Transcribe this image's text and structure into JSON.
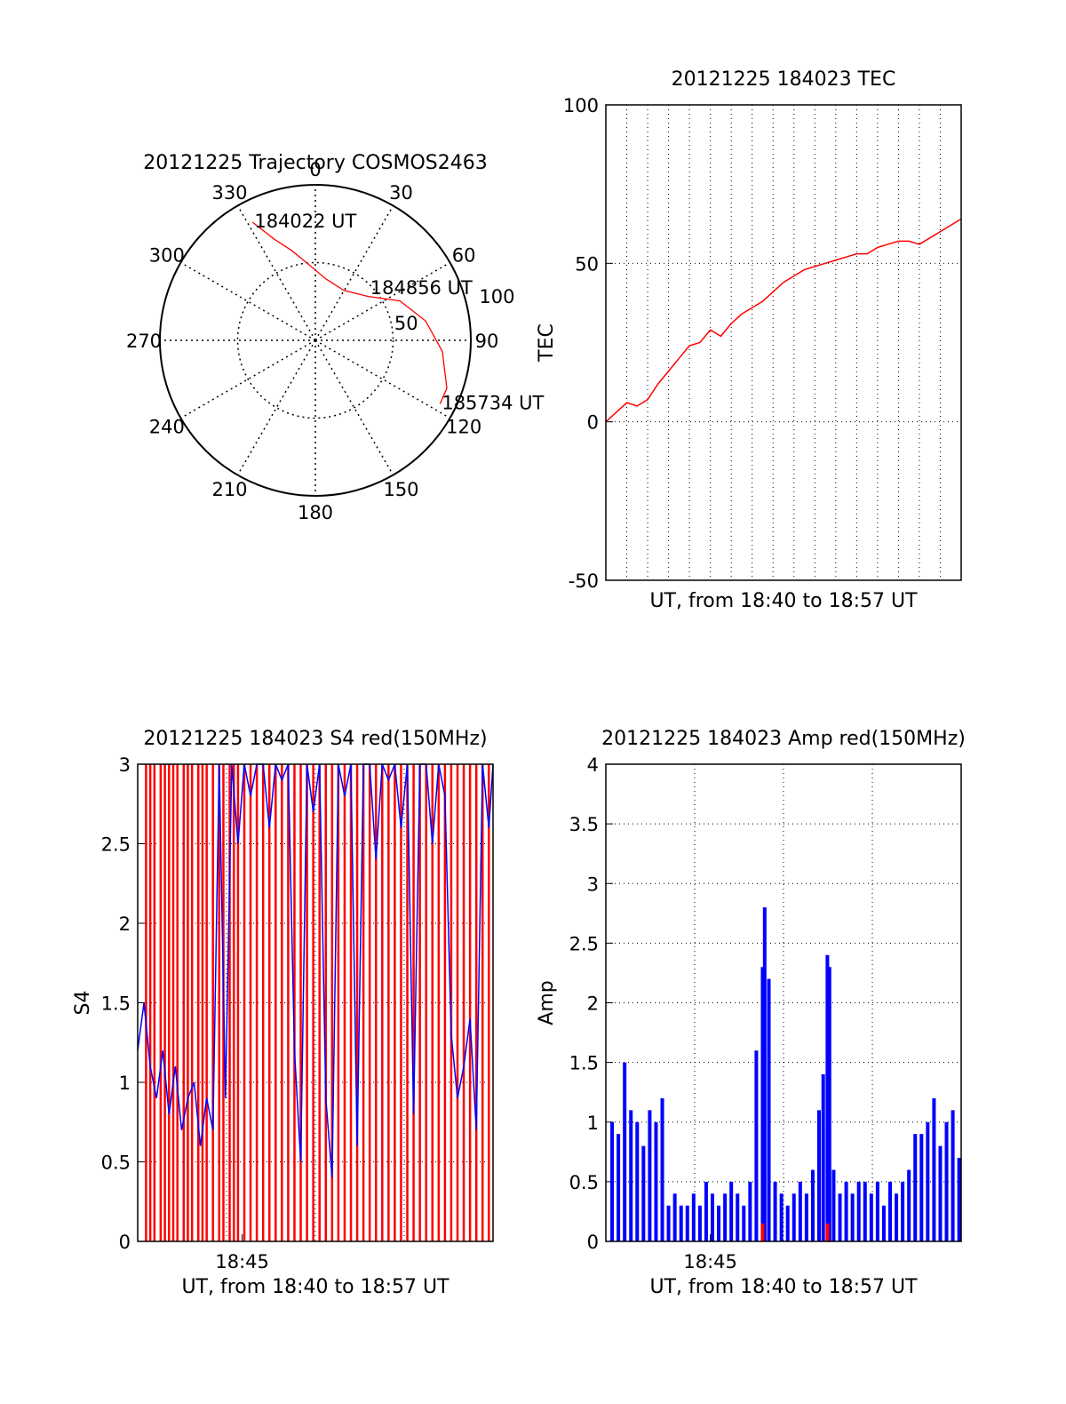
{
  "colors": {
    "trace_red": "#ff0000",
    "trace_blue": "#0000ff",
    "axis": "#000000"
  },
  "chart_data": [
    {
      "type": "polar",
      "title": "20121225 Trajectory COSMOS2463",
      "angle_labels": [
        "0",
        "30",
        "60",
        "90",
        "120",
        "150",
        "180",
        "210",
        "240",
        "270",
        "300",
        "330"
      ],
      "radius_labels": [
        "50",
        "100"
      ],
      "radius_range": [
        0,
        100
      ],
      "grid": true,
      "series": [
        {
          "points": [
            {
              "azimuth": 332,
              "zenith": 86
            },
            {
              "azimuth": 338,
              "zenith": 70
            },
            {
              "azimuth": 345,
              "zenith": 60
            },
            {
              "azimuth": 355,
              "zenith": 49
            },
            {
              "azimuth": 10,
              "zenith": 40
            },
            {
              "azimuth": 30,
              "zenith": 37
            },
            {
              "azimuth": 50,
              "zenith": 44
            },
            {
              "azimuth": 65,
              "zenith": 60
            },
            {
              "azimuth": 80,
              "zenith": 72
            },
            {
              "azimuth": 95,
              "zenith": 82
            },
            {
              "azimuth": 110,
              "zenith": 90
            },
            {
              "azimuth": 117,
              "zenith": 90
            }
          ]
        }
      ],
      "annotations": [
        {
          "text": "184022 UT",
          "azimuth": 332,
          "zenith": 86
        },
        {
          "text": "184856 UT",
          "azimuth": 47,
          "zenith": 42
        },
        {
          "text": "185734 UT",
          "azimuth": 117,
          "zenith": 90
        }
      ]
    },
    {
      "type": "line",
      "title": "20121225 184023 TEC",
      "xlabel": "UT, from 18:40 to 18:57 UT",
      "ylabel": "TEC",
      "xlim": [
        0,
        17
      ],
      "ylim": [
        -50,
        100
      ],
      "y_ticks": [
        "-50",
        "0",
        "50",
        "100"
      ],
      "grid": true,
      "series": [
        {
          "x": [
            0,
            0.5,
            1,
            1.5,
            2,
            2.5,
            3,
            3.5,
            4,
            4.5,
            5,
            5.5,
            6,
            6.5,
            7,
            7.5,
            8,
            8.5,
            9,
            9.5,
            10,
            10.5,
            11,
            11.5,
            12,
            12.5,
            13,
            13.5,
            14,
            14.5,
            15,
            15.5,
            16,
            16.5,
            17
          ],
          "values": [
            0,
            3,
            6,
            5,
            7,
            12,
            16,
            20,
            24,
            25,
            29,
            27,
            31,
            34,
            36,
            38,
            41,
            44,
            46,
            48,
            49,
            50,
            51,
            52,
            53,
            53,
            55,
            56,
            57,
            57,
            56,
            58,
            60,
            62,
            64
          ]
        }
      ]
    },
    {
      "type": "line",
      "title": "20121225 184023 S4 red(150MHz)",
      "xlabel": "UT, from 18:40 to 18:57 UT",
      "ylabel": "S4",
      "xlim": [
        0,
        17
      ],
      "ylim": [
        0,
        3
      ],
      "x_ticks": [
        {
          "x": 5,
          "label": "18:45"
        }
      ],
      "y_ticks": [
        "0",
        "0.5",
        "1",
        "1.5",
        "2",
        "2.5",
        "3"
      ],
      "grid": true,
      "series": [
        {
          "color": "red",
          "mode": "spikes",
          "x": [
            0.4,
            0.6,
            0.8,
            1.1,
            1.3,
            1.5,
            1.7,
            1.9,
            2.2,
            2.4,
            2.6,
            2.9,
            3.1,
            3.3,
            3.6,
            3.9,
            4.1,
            4.4,
            4.6,
            4.8,
            5.1,
            5.4,
            5.7,
            6.0,
            6.3,
            6.6,
            6.9,
            7.2,
            7.5,
            7.8,
            8.1,
            8.4,
            8.7,
            9.0,
            9.3,
            9.6,
            9.9,
            10.2,
            10.5,
            10.8,
            11.1,
            11.4,
            11.7,
            12.0,
            12.3,
            12.6,
            12.9,
            13.2,
            13.5,
            13.8,
            14.1,
            14.4,
            14.7,
            15.0,
            15.3,
            15.6,
            15.9,
            16.2,
            16.5,
            16.8
          ],
          "values": [
            3,
            3,
            3,
            3,
            3,
            3,
            3,
            3,
            3,
            3,
            3,
            3,
            3,
            3,
            3,
            3,
            3,
            3,
            3,
            3,
            3,
            3,
            3,
            3,
            3,
            3,
            3,
            3,
            3,
            3,
            3,
            3,
            3,
            3,
            3,
            3,
            3,
            3,
            3,
            3,
            3,
            3,
            3,
            3,
            3,
            3,
            3,
            3,
            3,
            3,
            3,
            3,
            3,
            3,
            3,
            3,
            3,
            3,
            3,
            3
          ]
        },
        {
          "color": "blue",
          "mode": "line",
          "x": [
            0,
            0.3,
            0.6,
            0.9,
            1.2,
            1.5,
            1.8,
            2.1,
            2.4,
            2.7,
            3.0,
            3.3,
            3.6,
            3.9,
            4.2,
            4.5,
            4.8,
            5.1,
            5.4,
            5.7,
            6.0,
            6.3,
            6.6,
            6.9,
            7.2,
            7.5,
            7.8,
            8.1,
            8.4,
            8.7,
            9.0,
            9.3,
            9.6,
            9.9,
            10.2,
            10.5,
            10.8,
            11.1,
            11.4,
            11.7,
            12.0,
            12.3,
            12.6,
            12.9,
            13.2,
            13.5,
            13.8,
            14.1,
            14.4,
            14.7,
            15.0,
            15.3,
            15.6,
            15.9,
            16.2,
            16.5,
            16.8,
            17.0
          ],
          "values": [
            1.2,
            1.5,
            1.1,
            0.9,
            1.2,
            0.8,
            1.1,
            0.7,
            0.9,
            1.0,
            0.6,
            0.9,
            0.7,
            3,
            0.9,
            3,
            2.5,
            3,
            2.8,
            3,
            3,
            2.6,
            3,
            2.9,
            3,
            1.2,
            0.5,
            3,
            2.7,
            3,
            0.9,
            0.4,
            3,
            2.8,
            3,
            0.6,
            3,
            3,
            2.4,
            3,
            2.9,
            3,
            2.6,
            3,
            0.8,
            3,
            3,
            2.5,
            3,
            2.8,
            1.3,
            0.9,
            1.1,
            1.4,
            0.7,
            3,
            2.6,
            3
          ]
        }
      ]
    },
    {
      "type": "line",
      "title": "20121225 184023 Amp red(150MHz)",
      "xlabel": "UT, from 18:40 to 18:57 UT",
      "ylabel": "Amp",
      "xlim": [
        0,
        17
      ],
      "ylim": [
        0,
        4
      ],
      "x_ticks": [
        {
          "x": 5,
          "label": "18:45"
        }
      ],
      "y_ticks": [
        "0",
        "0.5",
        "1",
        "1.5",
        "2",
        "2.5",
        "3",
        "3.5",
        "4"
      ],
      "grid": true,
      "series": [
        {
          "color": "blue",
          "mode": "spikes",
          "x": [
            0.3,
            0.6,
            0.9,
            1.2,
            1.5,
            1.8,
            2.1,
            2.4,
            2.7,
            3.0,
            3.3,
            3.6,
            3.9,
            4.2,
            4.5,
            4.8,
            5.1,
            5.4,
            5.7,
            6.0,
            6.3,
            6.6,
            6.9,
            7.2,
            7.5,
            7.6,
            7.8,
            8.1,
            8.4,
            8.7,
            9.0,
            9.3,
            9.6,
            9.9,
            10.2,
            10.4,
            10.6,
            10.7,
            10.9,
            11.2,
            11.5,
            11.8,
            12.1,
            12.4,
            12.7,
            13.0,
            13.3,
            13.6,
            13.9,
            14.2,
            14.5,
            14.8,
            15.1,
            15.4,
            15.7,
            16.0,
            16.3,
            16.6,
            16.9
          ],
          "values": [
            1.0,
            0.9,
            1.5,
            1.1,
            1.0,
            0.8,
            1.1,
            1.0,
            1.2,
            0.3,
            0.4,
            0.3,
            0.3,
            0.4,
            0.3,
            0.5,
            0.4,
            0.3,
            0.4,
            0.5,
            0.4,
            0.3,
            0.5,
            1.6,
            2.3,
            2.8,
            2.2,
            0.5,
            0.4,
            0.3,
            0.4,
            0.5,
            0.4,
            0.6,
            1.1,
            1.4,
            2.4,
            2.3,
            0.6,
            0.4,
            0.5,
            0.4,
            0.5,
            0.5,
            0.4,
            0.5,
            0.3,
            0.5,
            0.4,
            0.5,
            0.6,
            0.9,
            0.9,
            1.0,
            1.2,
            0.8,
            1.0,
            1.1,
            0.7
          ]
        },
        {
          "color": "red",
          "mode": "spikes",
          "x": [
            7.5,
            10.6
          ],
          "values": [
            0.15,
            0.15
          ]
        }
      ]
    }
  ]
}
